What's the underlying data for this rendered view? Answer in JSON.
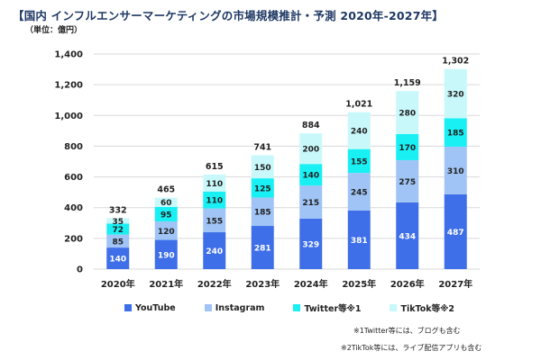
{
  "title": "【国内 インフルエンサーマーケティングの市場規模推計・予測 2020年-2027年】",
  "unit_label": "（単位：億円）",
  "notes": [
    "※1Twitter等には、ブログも含む",
    "※2TikTok等には、ライブ配信アプリも含む"
  ],
  "colors": {
    "youtube": "#3e6fe8",
    "instagram": "#9fc4f5",
    "twitter": "#19f0f4",
    "tiktok": "#c9f8fb",
    "grid": "#d9d9d9"
  },
  "chart_data": {
    "type": "bar",
    "stacked": true,
    "categories": [
      "2020年",
      "2021年",
      "2022年",
      "2023年",
      "2024年",
      "2025年",
      "2026年",
      "2027年"
    ],
    "series": [
      {
        "name": "YouTube",
        "values": [
          140,
          190,
          240,
          281,
          329,
          381,
          434,
          487
        ]
      },
      {
        "name": "Instagram",
        "values": [
          85,
          120,
          155,
          185,
          215,
          245,
          275,
          310
        ]
      },
      {
        "name": "Twitter等※1",
        "values": [
          72,
          95,
          110,
          125,
          140,
          155,
          170,
          185
        ]
      },
      {
        "name": "TikTok等※2",
        "values": [
          35,
          60,
          110,
          150,
          200,
          240,
          280,
          320
        ]
      }
    ],
    "totals": [
      "332",
      "465",
      "615",
      "741",
      "884",
      "1,021",
      "1,159",
      "1,302"
    ],
    "ylim": [
      0,
      1400
    ],
    "yticks": [
      0,
      200,
      400,
      600,
      800,
      1000,
      1200,
      1400
    ],
    "ytick_labels": [
      "0",
      "200",
      "400",
      "600",
      "800",
      "1,000",
      "1,200",
      "1,400"
    ],
    "grid": true,
    "legend_position": "bottom"
  }
}
